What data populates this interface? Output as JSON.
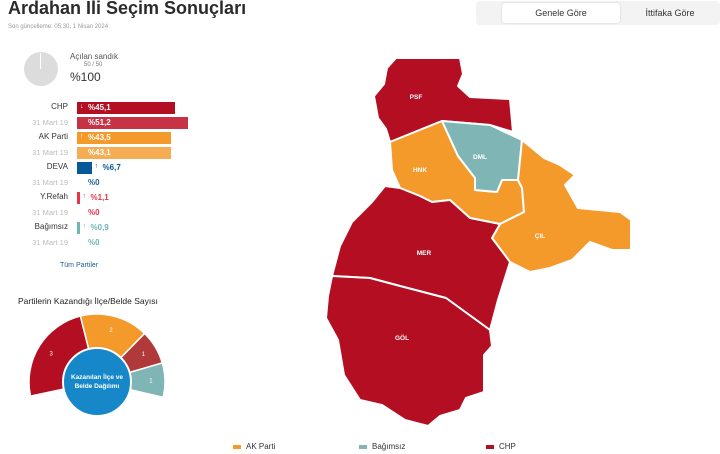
{
  "header": {
    "title": "Ardahan İli Seçim Sonuçları",
    "updated": "Son güncelleme: 05:30, 1 Nisan 2024"
  },
  "tabs": [
    {
      "label": "Genele Göre",
      "active": true
    },
    {
      "label": "İttifaka Göre",
      "active": false
    }
  ],
  "ballot": {
    "label": "Açılan sandık",
    "count": "50 / 50",
    "percent": "%100",
    "fraction": 1.0
  },
  "prev_label": "31 Mart 19",
  "parties": [
    {
      "name": "CHP",
      "current": "%45,1",
      "previous": "%51,2",
      "current_value": 45.1,
      "previous_value": 51.2,
      "trend": "↓",
      "color": "#b30e21",
      "prev_color": "#c53345"
    },
    {
      "name": "AK Parti",
      "current": "%43,5",
      "previous": "%43,1",
      "current_value": 43.5,
      "previous_value": 43.1,
      "trend": "↑",
      "color": "#f39a2a",
      "prev_color": "#f5ad55"
    },
    {
      "name": "DEVA",
      "current": "%6,7",
      "previous": "%0",
      "current_value": 6.7,
      "previous_value": 0,
      "trend": "↑",
      "color": "#065998",
      "prev_color": "#1a5f96"
    },
    {
      "name": "Y.Refah",
      "current": "%1,1",
      "previous": "%0",
      "current_value": 1.1,
      "previous_value": 0,
      "trend": "↑",
      "color": "#e8334a",
      "prev_color": "#e8334a"
    },
    {
      "name": "Bağımsız",
      "current": "%0,9",
      "previous": "%0",
      "current_value": 0.9,
      "previous_value": 0,
      "trend": "↑",
      "color": "#72b5b8",
      "prev_color": "#72b5b8"
    }
  ],
  "all_parties_link": "Tüm Partiler",
  "wins": {
    "title": "Partilerin Kazandığı İlçe/Belde Sayısı",
    "center_label": "Kazanılan İlçe ve Belde Dağılımı",
    "segments": [
      {
        "party": "CHP",
        "count": "3",
        "value": 3,
        "color": "#b30e21"
      },
      {
        "party": "AK Parti",
        "count": "2",
        "value": 2,
        "color": "#f39a2a"
      },
      {
        "party": "CHP",
        "count": "1",
        "value": 1,
        "color": "#b03a3a"
      },
      {
        "party": "Bağımsız",
        "count": "1",
        "value": 1,
        "color": "#7fb5b5"
      }
    ]
  },
  "map": {
    "districts": [
      {
        "code": "PSF",
        "color": "#b30e21"
      },
      {
        "code": "HNK",
        "color": "#f39a2a"
      },
      {
        "code": "DML",
        "color": "#7fb5b5"
      },
      {
        "code": "ÇIL",
        "color": "#f39a2a"
      },
      {
        "code": "MER",
        "color": "#b30e21"
      },
      {
        "code": "GÖL",
        "color": "#b30e21"
      }
    ]
  },
  "legend": [
    {
      "label": "AK Parti",
      "color": "#f39a2a"
    },
    {
      "label": "Bağımsız",
      "color": "#7fb5b5"
    },
    {
      "label": "CHP",
      "color": "#b30e21"
    }
  ]
}
